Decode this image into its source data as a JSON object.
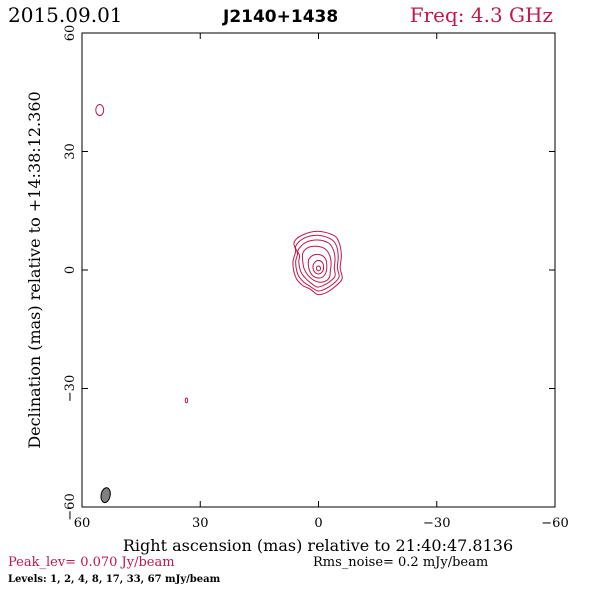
{
  "header": {
    "date": "2015.09.01",
    "source": "J2140+1438",
    "freq": "Freq: 4.3 GHz"
  },
  "footer": {
    "peak": "Peak_lev=  0.070 Jy/beam",
    "rms": "Rms_noise=  0.2 mJy/beam",
    "levels": "Levels:   1,   2,   4,   8,  17,  33,  67 mJy/beam"
  },
  "colors": {
    "contour": "#c0184a",
    "axis": "#000000",
    "beam": "#808080",
    "freq": "#c0184a"
  },
  "chart_data": {
    "type": "contour",
    "xlabel": "Right ascension (mas) relative to 21:40:47.8136",
    "ylabel": "Declination (mas) relative to +14:38:12.360",
    "xlim": [
      60,
      -60
    ],
    "ylim": [
      -60,
      60
    ],
    "xticks": [
      60,
      30,
      0,
      -30,
      -60
    ],
    "yticks": [
      -60,
      -30,
      0,
      30,
      60
    ],
    "xtick_labels": [
      "60",
      "30",
      "0",
      "−30",
      "−60"
    ],
    "ytick_labels": [
      "−60",
      "−30",
      "0",
      "30",
      "60"
    ],
    "levels_mJy": [
      1,
      2,
      4,
      8,
      17,
      33,
      67
    ],
    "peak_Jy_per_beam": 0.07,
    "rms_mJy_per_beam": 0.2,
    "core_contours": [
      [
        [
          6.2,
          7.0
        ],
        [
          4.2,
          8.8
        ],
        [
          0.2,
          9.8
        ],
        [
          -3.8,
          8.8
        ],
        [
          -5.2,
          7.0
        ],
        [
          -5.8,
          3.8
        ],
        [
          -5.5,
          0.5
        ],
        [
          -6,
          -2.2
        ],
        [
          -4.2,
          -4.2
        ],
        [
          -1.8,
          -5.8
        ],
        [
          0.2,
          -6.2
        ],
        [
          2.2,
          -4.8
        ],
        [
          4.2,
          -3.8
        ],
        [
          5.8,
          -1.8
        ],
        [
          6.5,
          1.8
        ],
        [
          5.8,
          4.8
        ]
      ],
      [
        [
          5.8,
          6.0
        ],
        [
          3.8,
          8.0
        ],
        [
          0.2,
          8.8
        ],
        [
          -3.2,
          7.8
        ],
        [
          -4.6,
          6.0
        ],
        [
          -5,
          3.3
        ],
        [
          -4.8,
          0.6
        ],
        [
          -5.2,
          -1.8
        ],
        [
          -3.6,
          -3.6
        ],
        [
          -1.5,
          -4.9
        ],
        [
          0.2,
          -5.3
        ],
        [
          2.2,
          -4.1
        ],
        [
          3.8,
          -3
        ],
        [
          5.2,
          -1.2
        ],
        [
          5.8,
          2.0
        ],
        [
          5.3,
          4.2
        ]
      ],
      [
        [
          5.2,
          5.0
        ],
        [
          3.2,
          7.0
        ],
        [
          0.2,
          7.6
        ],
        [
          -2.6,
          6.8
        ],
        [
          -3.8,
          5.0
        ],
        [
          -4.2,
          2.8
        ],
        [
          -4,
          0.5
        ],
        [
          -4.2,
          -1.5
        ],
        [
          -2.8,
          -3.0
        ],
        [
          -1,
          -4.0
        ],
        [
          0.4,
          -4.3
        ],
        [
          1.8,
          -3.4
        ],
        [
          3.2,
          -2.2
        ],
        [
          4.4,
          -0.6
        ],
        [
          5,
          1.9
        ],
        [
          4.8,
          3.6
        ]
      ],
      [
        [
          4,
          4.2
        ],
        [
          2.8,
          5.6
        ],
        [
          0.6,
          6.0
        ],
        [
          -1.6,
          5.4
        ],
        [
          -2.8,
          3.8
        ],
        [
          -3.2,
          1.8
        ],
        [
          -3,
          -0.2
        ],
        [
          -2.8,
          -1.8
        ],
        [
          -1.8,
          -2.8
        ],
        [
          -0.3,
          -3.1
        ],
        [
          1.2,
          -2.6
        ],
        [
          2.6,
          -1.4
        ],
        [
          3.6,
          0.2
        ],
        [
          4,
          2.2
        ]
      ],
      [
        [
          2.4,
          2.8
        ],
        [
          1.2,
          3.8
        ],
        [
          -0.6,
          3.8
        ],
        [
          -1.8,
          2.8
        ],
        [
          -2.1,
          1.2
        ],
        [
          -1.9,
          -0.6
        ],
        [
          -1,
          -1.8
        ],
        [
          0.3,
          -2.0
        ],
        [
          1.6,
          -1.3
        ],
        [
          2.4,
          0.2
        ],
        [
          2.6,
          1.6
        ]
      ],
      [
        [
          1.2,
          1.6
        ],
        [
          0.2,
          2.4
        ],
        [
          -0.9,
          2.0
        ],
        [
          -1.3,
          0.8
        ],
        [
          -1.0,
          -0.4
        ],
        [
          0.0,
          -1.0
        ],
        [
          1.0,
          -0.5
        ],
        [
          1.4,
          0.6
        ]
      ],
      [
        [
          0.5,
          0.7
        ],
        [
          0.0,
          1.0
        ],
        [
          -0.5,
          0.6
        ],
        [
          -0.4,
          0.0
        ],
        [
          0.1,
          -0.2
        ],
        [
          0.5,
          0.2
        ]
      ]
    ],
    "isolated_contours": [
      {
        "x": 55.5,
        "y": 40.5,
        "rx": 1.0,
        "ry": 1.4
      },
      {
        "x": 33.5,
        "y": -33.0,
        "rx": 0.3,
        "ry": 0.6
      }
    ],
    "beam": {
      "x": 54.0,
      "y": -57.0,
      "major_mas": 3.8,
      "minor_mas": 2.3,
      "pa_deg": 10
    }
  }
}
